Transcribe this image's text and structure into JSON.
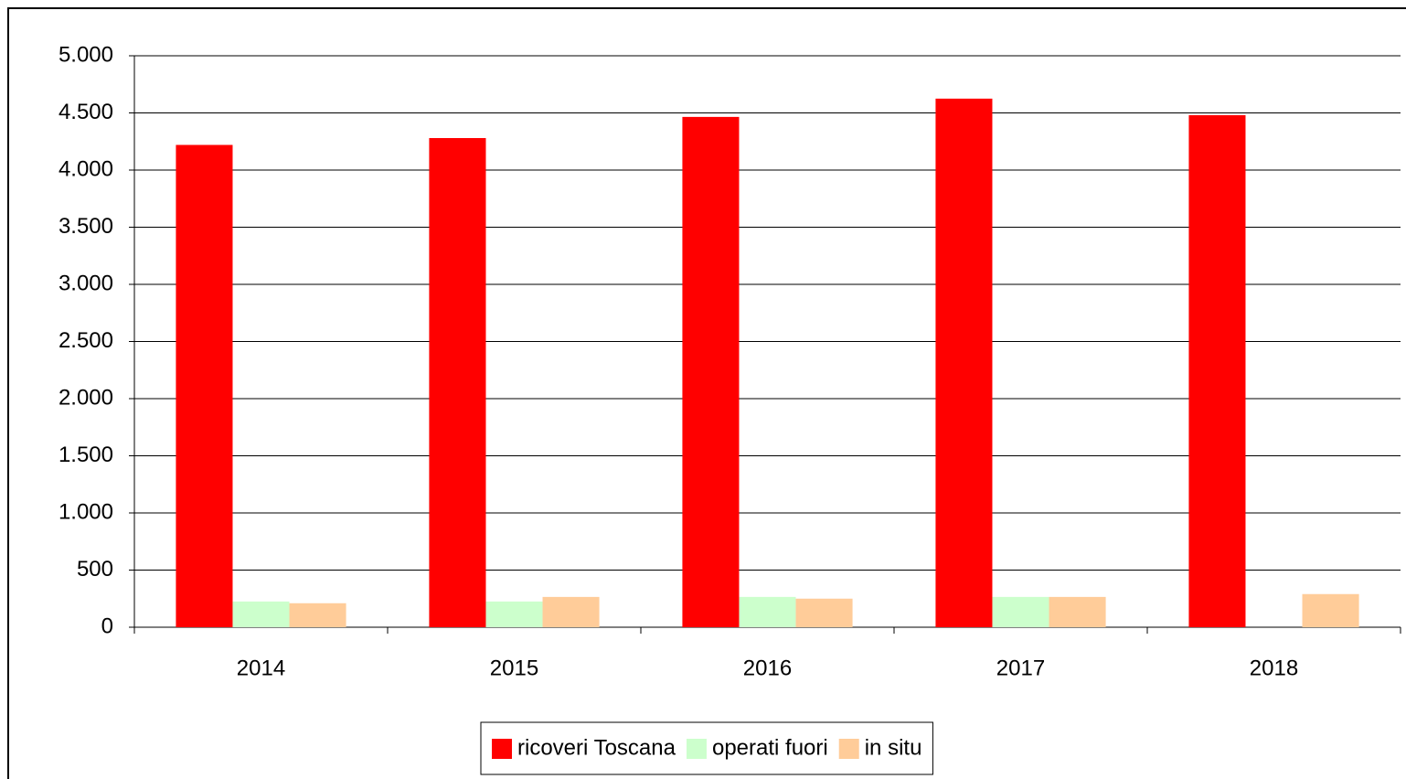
{
  "chart_data": {
    "type": "bar",
    "categories": [
      "2014",
      "2015",
      "2016",
      "2017",
      "2018"
    ],
    "series": [
      {
        "name": "ricoveri Toscana",
        "color": "#ff0000",
        "values": [
          4220,
          4280,
          4465,
          4625,
          4480
        ]
      },
      {
        "name": "operati fuori",
        "color": "#ccffcc",
        "values": [
          225,
          225,
          265,
          265,
          null
        ]
      },
      {
        "name": "in situ",
        "color": "#ffcc99",
        "values": [
          210,
          265,
          250,
          265,
          290
        ]
      }
    ],
    "ylim": [
      0,
      5000
    ],
    "yticks": [
      0,
      500,
      {
        "value": 1000,
        "label": "1.000"
      },
      {
        "value": 1500,
        "label": "1.500"
      },
      {
        "value": 2000,
        "label": "2.000"
      },
      {
        "value": 2500,
        "label": "2.500"
      },
      {
        "value": 3000,
        "label": "3.000"
      },
      {
        "value": 3500,
        "label": "3.500"
      },
      {
        "value": 4000,
        "label": "4.000"
      },
      {
        "value": 4500,
        "label": "4.500"
      },
      {
        "value": 5000,
        "label": "5.000"
      }
    ],
    "grid": true,
    "legend": "bottom"
  }
}
